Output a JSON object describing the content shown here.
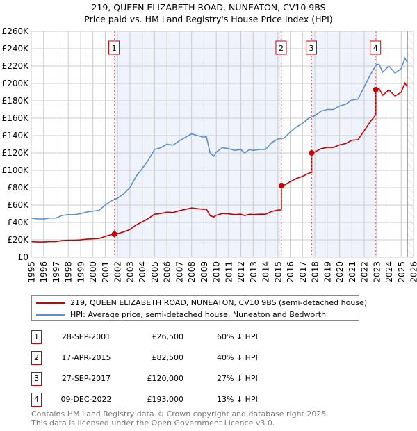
{
  "title_line1": "219, QUEEN ELIZABETH ROAD, NUNEATON, CV10 9BS",
  "title_line2": "Price paid vs. HM Land Registry's House Price Index (HPI)",
  "colors": {
    "price_paid": "#cc0000",
    "hpi": "#5b8fd0",
    "shade": "#eef3fc",
    "grid": "#cccccc"
  },
  "chart_data": {
    "type": "line",
    "xlim": [
      1995,
      2026
    ],
    "ylim": [
      0,
      260000
    ],
    "y_ticks": [
      0,
      20000,
      40000,
      60000,
      80000,
      100000,
      120000,
      140000,
      160000,
      180000,
      200000,
      220000,
      240000,
      260000
    ],
    "y_tick_labels": [
      "£0",
      "£20K",
      "£40K",
      "£60K",
      "£80K",
      "£100K",
      "£120K",
      "£140K",
      "£160K",
      "£180K",
      "£200K",
      "£220K",
      "£240K",
      "£260K"
    ],
    "x_ticks": [
      1995,
      1996,
      1997,
      1998,
      1999,
      2000,
      2001,
      2002,
      2003,
      2004,
      2005,
      2006,
      2007,
      2008,
      2009,
      2010,
      2011,
      2012,
      2013,
      2014,
      2015,
      2016,
      2017,
      2018,
      2019,
      2020,
      2021,
      2022,
      2023,
      2024,
      2025,
      2026
    ],
    "hatched_from": 2025.5,
    "series": [
      {
        "name": "HPI: Average price, semi-detached house, Nuneaton and Bedworth",
        "x": [
          1995,
          1995.5,
          1996,
          1996.5,
          1997,
          1997.5,
          1998,
          1998.5,
          1999,
          1999.5,
          2000,
          2000.5,
          2001,
          2001.5,
          2002,
          2002.5,
          2003,
          2003.5,
          2004,
          2004.5,
          2005,
          2005.5,
          2006,
          2006.5,
          2007,
          2007.5,
          2008,
          2008.5,
          2009,
          2009.2,
          2009.5,
          2009.8,
          2010,
          2010.5,
          2011,
          2011.5,
          2012,
          2012.3,
          2012.7,
          2013,
          2013.5,
          2014,
          2014.5,
          2015,
          2015.5,
          2016,
          2016.5,
          2017,
          2017.5,
          2018,
          2018.5,
          2019,
          2019.5,
          2020,
          2020.5,
          2021,
          2021.5,
          2022,
          2022.5,
          2023,
          2023.2,
          2023.5,
          2024,
          2024.5,
          2025,
          2025.3,
          2025.5
        ],
        "y": [
          45000,
          44000,
          44000,
          45000,
          45000,
          48000,
          49000,
          49000,
          50000,
          52000,
          53000,
          54000,
          60000,
          65000,
          68000,
          73000,
          80000,
          93000,
          102000,
          112000,
          124000,
          126000,
          130000,
          129000,
          134000,
          138000,
          142000,
          140000,
          138000,
          139000,
          120000,
          116000,
          121000,
          126000,
          125000,
          123000,
          124000,
          120000,
          124000,
          123000,
          124000,
          124000,
          132000,
          136000,
          137000,
          144000,
          150000,
          154000,
          160000,
          163000,
          168000,
          170000,
          170000,
          174000,
          176000,
          181000,
          182000,
          196000,
          210000,
          222000,
          222000,
          213000,
          220000,
          212000,
          217000,
          229000,
          224000
        ]
      },
      {
        "name": "219, QUEEN ELIZABETH ROAD, NUNEATON, CV10 9BS (semi-detached house)",
        "derived_from_hpi_and_sales": true
      }
    ],
    "sales": [
      {
        "n": "1",
        "x": 2001.74,
        "price": 26500
      },
      {
        "n": "2",
        "x": 2015.29,
        "price": 82500
      },
      {
        "n": "3",
        "x": 2017.74,
        "price": 120000
      },
      {
        "n": "4",
        "x": 2022.94,
        "price": 193000
      }
    ]
  },
  "legend": {
    "price_paid": "219, QUEEN ELIZABETH ROAD, NUNEATON, CV10 9BS (semi-detached house)",
    "hpi": "HPI: Average price, semi-detached house, Nuneaton and Bedworth"
  },
  "transactions": [
    {
      "n": "1",
      "date": "28-SEP-2001",
      "price": "£26,500",
      "hpi": "60% ↓ HPI"
    },
    {
      "n": "2",
      "date": "17-APR-2015",
      "price": "£82,500",
      "hpi": "40% ↓ HPI"
    },
    {
      "n": "3",
      "date": "27-SEP-2017",
      "price": "£120,000",
      "hpi": "27% ↓ HPI"
    },
    {
      "n": "4",
      "date": "09-DEC-2022",
      "price": "£193,000",
      "hpi": "13% ↓ HPI"
    }
  ],
  "footer": {
    "line1": "Contains HM Land Registry data © Crown copyright and database right 2025.",
    "line2": "This data is licensed under the Open Government Licence v3.0."
  }
}
